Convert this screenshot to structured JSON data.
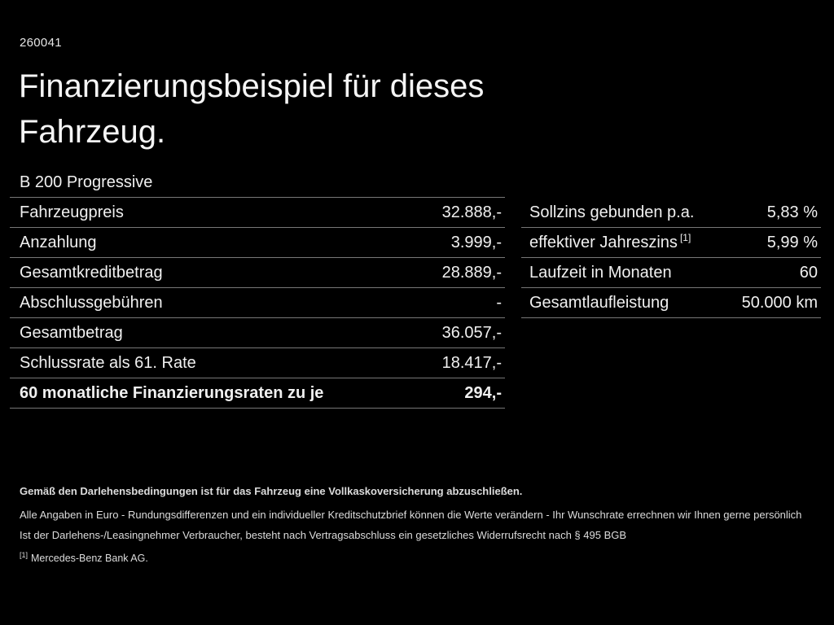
{
  "page": {
    "doc_number": "260041",
    "title_line1": "Finanzierungsbeispiel für dieses",
    "title_line2": "Fahrzeug.",
    "model": "B 200 Progressive"
  },
  "finance_table": {
    "rows": [
      {
        "label": "Fahrzeugpreis",
        "value": "32.888,-",
        "bold": false
      },
      {
        "label": "Anzahlung",
        "value": "3.999,-",
        "bold": false
      },
      {
        "label": "Gesamtkreditbetrag",
        "value": "28.889,-",
        "bold": false
      },
      {
        "label": "Abschlussgebühren",
        "value": "-",
        "bold": false
      },
      {
        "label": "Gesamtbetrag",
        "value": "36.057,-",
        "bold": false
      },
      {
        "label": "Schlussrate als 61. Rate",
        "value": "18.417,-",
        "bold": false
      },
      {
        "label": "60 monatliche Finanzierungsraten zu je",
        "value": "294,-",
        "bold": true
      }
    ]
  },
  "conditions_table": {
    "rows": [
      {
        "label": "Sollzins gebunden p.a.",
        "value": "5,83 %",
        "bold": false
      },
      {
        "label": "effektiver Jahreszins",
        "superscript": "[1]",
        "value": "5,99 %",
        "bold": false
      },
      {
        "label": "Laufzeit in Monaten",
        "value": "60",
        "bold": false
      },
      {
        "label": "Gesamtlaufleistung",
        "value": "50.000 km",
        "bold": false
      }
    ]
  },
  "footnotes": {
    "line1": "Gemäß den Darlehensbedingungen ist für das Fahrzeug eine Vollkaskoversicherung abzuschließen.",
    "line2": "Alle Angaben in Euro - Rundungsdifferenzen und ein individueller Kreditschutzbrief können die Werte verändern - Ihr Wunschrate errechnen wir Ihnen gerne persönlich",
    "line3": "Ist der Darlehens-/Leasingnehmer Verbraucher, besteht nach Vertragsabschluss ein gesetzliches Widerrufsrecht nach § 495 BGB",
    "marker": "[1]",
    "line4": "Mercedes-Benz Bank AG."
  },
  "colors": {
    "background": "#000000",
    "text": "#f0f0f0",
    "divider": "#777777"
  }
}
